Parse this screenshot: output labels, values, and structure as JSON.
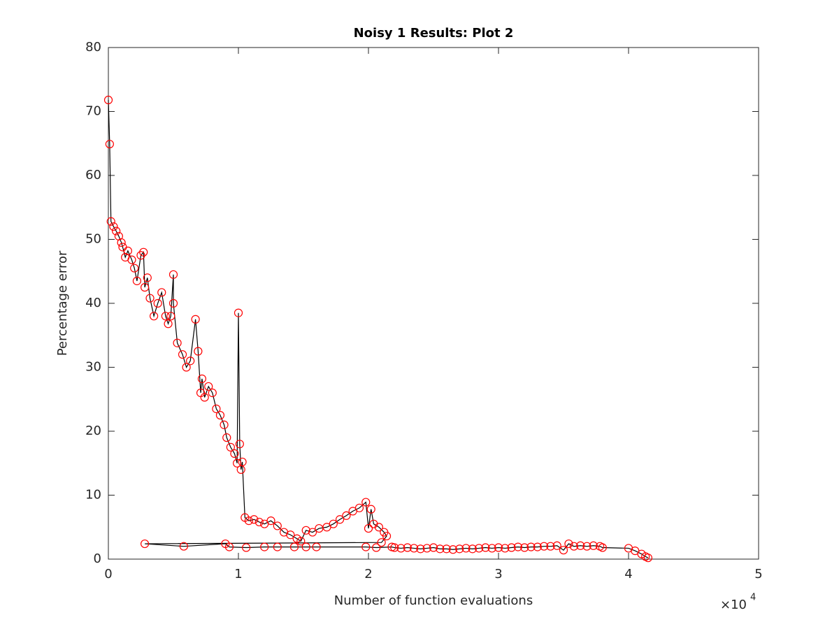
{
  "chart_data": {
    "type": "line",
    "title": "Noisy 1 Results: Plot 2",
    "xlabel": "Number of function evaluations",
    "ylabel": "Percentage error",
    "x_multiplier": "×10",
    "x_multiplier_exponent": "4",
    "xlim": [
      0,
      50000
    ],
    "ylim": [
      0,
      80
    ],
    "xticks": [
      0,
      {
        "value": 10000,
        "label": "1"
      },
      {
        "value": 20000,
        "label": "2"
      },
      {
        "value": 30000,
        "label": "3"
      },
      {
        "value": 40000,
        "label": "4"
      },
      {
        "value": 50000,
        "label": "5"
      }
    ],
    "yticks": [
      0,
      10,
      20,
      30,
      40,
      50,
      60,
      70,
      80
    ],
    "line_color": "#000000",
    "marker_color": "#ff0000",
    "x": [
      0,
      100,
      200,
      400,
      600,
      800,
      1000,
      1100,
      1300,
      1500,
      1800,
      2000,
      2200,
      2500,
      2700,
      2800,
      3000,
      3200,
      3500,
      3800,
      4100,
      4400,
      4600,
      4800,
      5000,
      5000,
      5300,
      5700,
      6000,
      6300,
      6700,
      6900,
      7100,
      7200,
      7400,
      7700,
      8000,
      8300,
      8600,
      8900,
      9100,
      9400,
      9700,
      9900,
      10000,
      10100,
      10200,
      10300,
      10500,
      10800,
      11200,
      11600,
      12000,
      12500,
      13000,
      13500,
      14000,
      14500,
      14800,
      15200,
      15700,
      16200,
      16800,
      17300,
      17800,
      18300,
      18800,
      19300,
      19800,
      20000,
      20200,
      20400,
      20800,
      21200,
      21400,
      21000,
      2800,
      5800,
      9000,
      9300,
      10600,
      12000,
      13000,
      14300,
      15200,
      16000,
      19800,
      20600,
      21800,
      22000,
      22500,
      23000,
      23500,
      24000,
      24500,
      25000,
      25500,
      26000,
      26500,
      27000,
      27500,
      28000,
      28500,
      29000,
      29500,
      30000,
      30500,
      31000,
      31500,
      32000,
      32500,
      33000,
      33500,
      34000,
      34500,
      35000,
      35400,
      35800,
      36300,
      36800,
      37300,
      37800,
      38000,
      40000,
      40500,
      41000,
      41300,
      41500
    ],
    "values": [
      71.8,
      64.9,
      52.8,
      52,
      51.3,
      50.5,
      49.5,
      48.8,
      47.2,
      48.2,
      46.8,
      45.5,
      43.5,
      47.5,
      48,
      42.5,
      44,
      40.8,
      38,
      40,
      41.7,
      38,
      36.8,
      38,
      44.5,
      40,
      33.8,
      32,
      30,
      31,
      37.5,
      32.5,
      26,
      28.2,
      25.3,
      27,
      26,
      23.5,
      22.5,
      21,
      19,
      17.5,
      16.5,
      15,
      38.5,
      18,
      14,
      15.2,
      6.5,
      6,
      6.2,
      5.8,
      5.5,
      6,
      5.2,
      4.2,
      3.8,
      3.2,
      2.8,
      4.5,
      4.2,
      4.8,
      5,
      5.5,
      6.2,
      6.8,
      7.5,
      8,
      8.9,
      4.8,
      7.8,
      5.5,
      5,
      4.2,
      3.6,
      2.6,
      2.4,
      2,
      2.4,
      1.9,
      1.8,
      1.9,
      1.9,
      1.9,
      1.9,
      1.9,
      1.9,
      1.8,
      1.9,
      1.8,
      1.7,
      1.8,
      1.7,
      1.6,
      1.7,
      1.8,
      1.6,
      1.6,
      1.5,
      1.6,
      1.7,
      1.6,
      1.7,
      1.8,
      1.7,
      1.8,
      1.7,
      1.8,
      1.9,
      1.8,
      1.9,
      1.9,
      2,
      2,
      2.1,
      1.4,
      2.4,
      2,
      2.1,
      2,
      2.1,
      2,
      1.8,
      1.7,
      1.3,
      0.8,
      0.4,
      0.2
    ]
  }
}
